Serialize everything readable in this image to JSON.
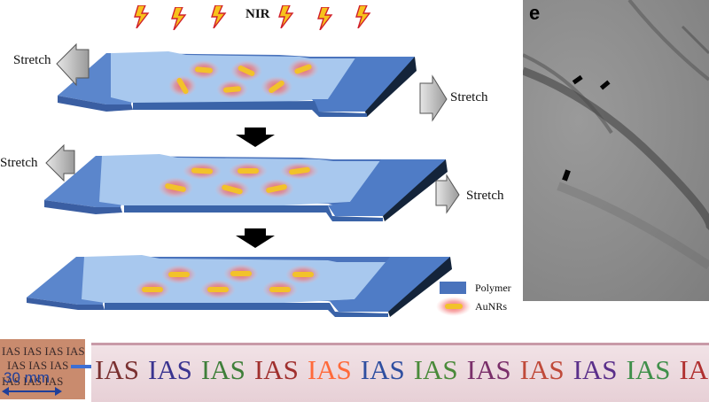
{
  "labels": {
    "nir": "NIR",
    "stretch": "Stretch",
    "panel_e": "e",
    "legend_polymer": "Polymer",
    "legend_aunrs": "AuNRs",
    "scale": "30 mm"
  },
  "photo_text": {
    "word": "IAS",
    "small_word": "IAS",
    "colors": [
      "#7a3030",
      "#3a3490",
      "#3f7f3a",
      "#a0302e",
      "#ff6a3a",
      "#2f4fa0",
      "#4a8a3a",
      "#7a2f6a",
      "#c04a3a",
      "#5a2f8a",
      "#3f8f4a",
      "#b03030"
    ]
  },
  "colors": {
    "polymer_top": "#9fbfe8",
    "polymer_dark": "#4a73bc",
    "rod": "#f2c22a",
    "glow": "#f26a6a"
  }
}
